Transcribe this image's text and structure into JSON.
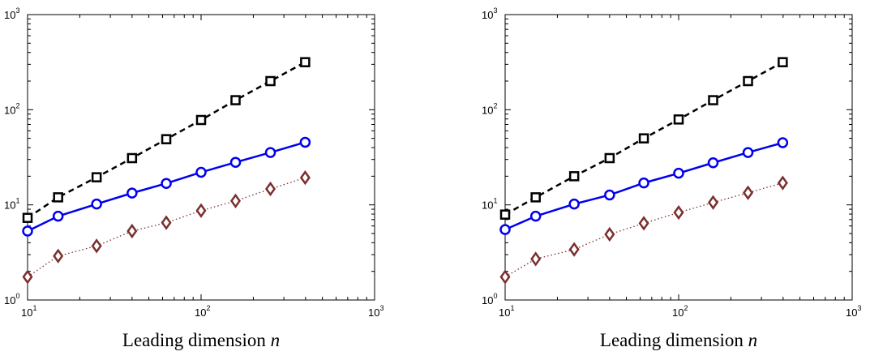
{
  "chart_data": [
    {
      "type": "line",
      "xlabel": "Leading dimension",
      "xlabel_var": "n",
      "xscale": "log",
      "yscale": "log",
      "xlim": [
        10,
        1000
      ],
      "ylim": [
        1,
        1000
      ],
      "x_ticks": [
        {
          "base": "10",
          "exp": "1"
        },
        {
          "base": "10",
          "exp": "2"
        },
        {
          "base": "10",
          "exp": "3"
        }
      ],
      "y_ticks": [
        {
          "base": "10",
          "exp": "0"
        },
        {
          "base": "10",
          "exp": "1"
        },
        {
          "base": "10",
          "exp": "2"
        },
        {
          "base": "10",
          "exp": "3"
        }
      ],
      "grid": false,
      "x": [
        10,
        15,
        25,
        40,
        63,
        100,
        158,
        251,
        398
      ],
      "series": [
        {
          "marker": "square",
          "line": "dashed",
          "color": "#000000",
          "values": [
            7.3,
            12,
            19.5,
            31,
            49,
            78,
            126,
            200,
            316
          ]
        },
        {
          "marker": "circle",
          "line": "solid",
          "color": "#0000ee",
          "values": [
            5.3,
            7.6,
            10.2,
            13.3,
            16.8,
            22,
            28,
            35.5,
            45.5
          ]
        },
        {
          "marker": "diamond",
          "line": "dotted",
          "color": "#7a2f2f",
          "values": [
            1.75,
            2.9,
            3.7,
            5.3,
            6.5,
            8.7,
            11,
            14.7,
            19.3
          ]
        }
      ]
    },
    {
      "type": "line",
      "xlabel": "Leading dimension",
      "xlabel_var": "n",
      "xscale": "log",
      "yscale": "log",
      "xlim": [
        10,
        1000
      ],
      "ylim": [
        1,
        1000
      ],
      "x_ticks": [
        {
          "base": "10",
          "exp": "1"
        },
        {
          "base": "10",
          "exp": "2"
        },
        {
          "base": "10",
          "exp": "3"
        }
      ],
      "y_ticks": [
        {
          "base": "10",
          "exp": "0"
        },
        {
          "base": "10",
          "exp": "1"
        },
        {
          "base": "10",
          "exp": "2"
        },
        {
          "base": "10",
          "exp": "3"
        }
      ],
      "grid": false,
      "x": [
        10,
        15,
        25,
        40,
        63,
        100,
        158,
        251,
        398
      ],
      "series": [
        {
          "marker": "square",
          "line": "dashed",
          "color": "#000000",
          "values": [
            7.9,
            12,
            20,
            31,
            50,
            79,
            126,
            200,
            316
          ]
        },
        {
          "marker": "circle",
          "line": "solid",
          "color": "#0000ee",
          "values": [
            5.5,
            7.6,
            10.2,
            12.7,
            17,
            21.5,
            27.7,
            35.5,
            45
          ]
        },
        {
          "marker": "diamond",
          "line": "dotted",
          "color": "#7a2f2f",
          "values": [
            1.75,
            2.7,
            3.4,
            4.9,
            6.4,
            8.3,
            10.6,
            13.4,
            17
          ]
        }
      ]
    }
  ]
}
